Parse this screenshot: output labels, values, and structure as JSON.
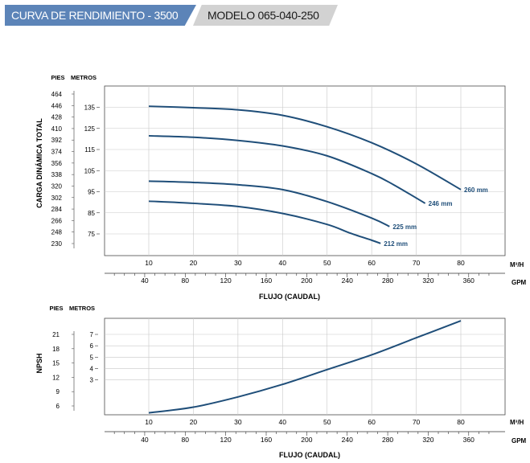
{
  "header": {
    "title": "CURVA DE RENDIMIENTO - 3500 RPM",
    "model": "MODELO 065-040-250",
    "colors": {
      "title_bg": "#5c84b8",
      "model_bg": "#d2d2d2"
    }
  },
  "chart_data": [
    {
      "type": "line",
      "title": "",
      "ylabel": "CARGA DINÁMICA TOTAL",
      "y_units_primary": "METROS",
      "y_units_secondary": "PIES",
      "xlabel": "FLUJO (CAUDAL)",
      "x_units_primary": "M³/H",
      "x_units_secondary": "GPM",
      "xlim": [
        0,
        83
      ],
      "ylim": [
        66,
        146
      ],
      "x_ticks": [
        "10",
        "20",
        "30",
        "40",
        "50",
        "60",
        "70",
        "80"
      ],
      "x2_ticks": [
        "40",
        "80",
        "120",
        "160",
        "200",
        "240",
        "280",
        "320",
        "360"
      ],
      "y_ticks": [
        "75",
        "85",
        "95",
        "105",
        "115",
        "125",
        "135"
      ],
      "y2_ticks": [
        "464",
        "446",
        "428",
        "410",
        "392",
        "374",
        "356",
        "338",
        "320",
        "302",
        "284",
        "266",
        "248",
        "230"
      ],
      "line_color": "#1f4e79",
      "series": [
        {
          "name": "260 mm",
          "x": [
            10,
            20,
            30,
            40,
            50,
            60,
            70,
            80
          ],
          "y": [
            135.5,
            134.8,
            133.8,
            131.2,
            125.8,
            118.2,
            108.2,
            96.0
          ]
        },
        {
          "name": "246 mm",
          "x": [
            10,
            20,
            30,
            40,
            50,
            60,
            65,
            72
          ],
          "y": [
            121.5,
            120.8,
            119.3,
            116.7,
            112.0,
            103.6,
            98.2,
            89.5
          ]
        },
        {
          "name": "225 mm",
          "x": [
            10,
            20,
            30,
            40,
            50,
            60,
            64
          ],
          "y": [
            100.0,
            99.4,
            98.3,
            96.0,
            90.3,
            82.5,
            78.5
          ]
        },
        {
          "name": "212 mm",
          "x": [
            10,
            20,
            30,
            40,
            50,
            55,
            60,
            62
          ],
          "y": [
            90.5,
            89.5,
            88.0,
            84.7,
            79.5,
            75.5,
            72.0,
            70.5
          ]
        }
      ]
    },
    {
      "type": "line",
      "title": "",
      "ylabel": "NPSH",
      "y_units_primary": "METROS",
      "y_units_secondary": "PIES",
      "xlabel": "FLUJO (CAUDAL)",
      "x_units_primary": "M³/H",
      "x_units_secondary": "GPM",
      "xlim": [
        0,
        83
      ],
      "ylim": [
        0,
        8
      ],
      "x_ticks": [
        "10",
        "20",
        "30",
        "40",
        "50",
        "60",
        "70",
        "80"
      ],
      "x2_ticks": [
        "40",
        "80",
        "120",
        "160",
        "200",
        "240",
        "280",
        "320",
        "360"
      ],
      "y_ticks": [
        "3",
        "4",
        "5",
        "6",
        "7"
      ],
      "y2_ticks": [
        "21",
        "18",
        "15",
        "12",
        "9",
        "6"
      ],
      "line_color": "#1f4e79",
      "series": [
        {
          "x": [
            10,
            20,
            30,
            40,
            50,
            60,
            70,
            80
          ],
          "y": [
            0.1,
            0.6,
            1.5,
            2.6,
            3.9,
            5.2,
            6.7,
            8.2
          ]
        }
      ]
    }
  ]
}
